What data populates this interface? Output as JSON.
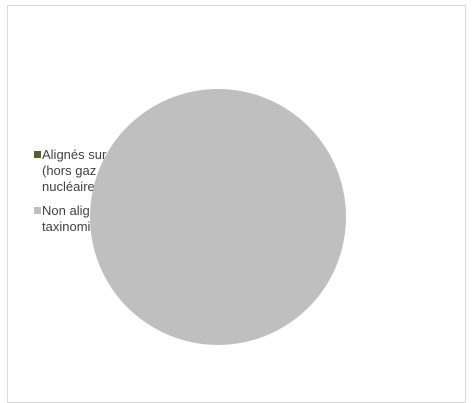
{
  "chart_data": {
    "type": "pie",
    "title": "",
    "legend_position": "left",
    "slices": [
      {
        "label": "Alignés sur la taxinomie: (hors gaz fossile et nucléaire) (0.00%)",
        "value": 0.0,
        "color": "#4f6228"
      },
      {
        "label": "Non alignés sur la taxinomie (100.00%)",
        "value": 100.0,
        "color": "#bfbfbf"
      }
    ]
  }
}
